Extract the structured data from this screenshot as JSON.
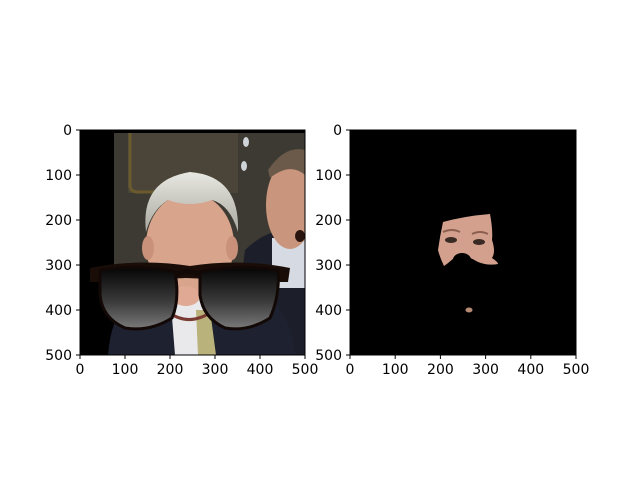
{
  "chart_data": [
    {
      "type": "image",
      "content": "photo",
      "subjects": [
        "man with gray hair",
        "man in background"
      ],
      "overlay": "sunglasses-icon",
      "x_ticks": [
        0,
        100,
        200,
        300,
        400,
        500
      ],
      "y_ticks": [
        0,
        100,
        200,
        300,
        400,
        500
      ],
      "xlim": [
        0,
        500
      ],
      "ylim": [
        500,
        0
      ],
      "axis_origin": "top-left",
      "background": "#000000"
    },
    {
      "type": "image",
      "content": "face mask",
      "visible_region": "skin around eyes and nose",
      "x_ticks": [
        0,
        100,
        200,
        300,
        400,
        500
      ],
      "y_ticks": [
        0,
        100,
        200,
        300,
        400,
        500
      ],
      "xlim": [
        0,
        500
      ],
      "ylim": [
        500,
        0
      ],
      "axis_origin": "top-left",
      "background": "#000000"
    }
  ]
}
